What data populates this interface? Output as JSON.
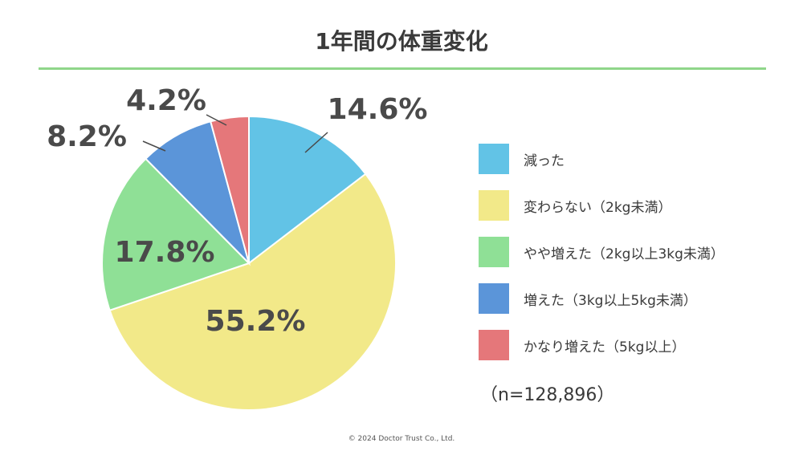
{
  "chart_data": {
    "type": "pie",
    "title": "1年間の体重変化",
    "categories": [
      "減った",
      "変わらない（2kg未満）",
      "やや増えた（2kg以上3kg未満）",
      "増えた（3kg以上5kg未満）",
      "かなり増えた（5kg以上）"
    ],
    "values": [
      14.6,
      55.2,
      17.8,
      8.2,
      4.2
    ],
    "data_labels": [
      "14.6%",
      "55.2%",
      "17.8%",
      "8.2%",
      "4.2%"
    ],
    "colors": [
      "#62c3e6",
      "#f2e989",
      "#8fe096",
      "#5b95d9",
      "#e5777a"
    ],
    "start_angle": "12 o'clock",
    "direction": "clockwise",
    "legend_position": "right",
    "sample_size": "（n=128,896）"
  },
  "footer": {
    "copyright": "© 2024 Doctor Trust Co., Ltd."
  }
}
